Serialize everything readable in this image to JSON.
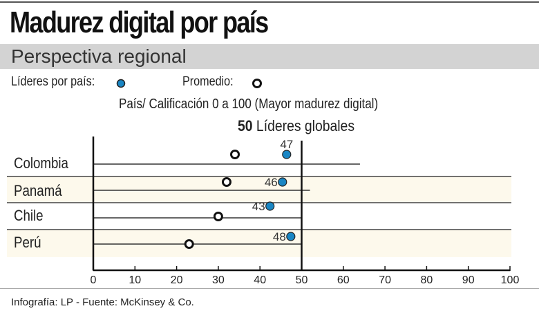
{
  "title": "Madurez digital por país",
  "subtitle": "Perspectiva regional",
  "legend": {
    "leaders": "Líderes por país:",
    "average": "Promedio:"
  },
  "footer": "Infografía: LP  - Fuente: McKinsey & Co.",
  "colors": {
    "leader": "#1a86c4",
    "band": "#fdf9ec",
    "header_band": "#d3d3d3"
  },
  "chart_data": {
    "type": "scatter",
    "xlabel": "País/ Calificación 0 a 100 (Mayor madurez digital)",
    "benchmark": {
      "value": 50,
      "label": "Líderes globales",
      "value_label": "50"
    },
    "xlim": [
      0,
      100
    ],
    "xticks": [
      0,
      10,
      20,
      30,
      40,
      50,
      60,
      70,
      80,
      90,
      100
    ],
    "categories": [
      "Colombia",
      "Panamá",
      "Chile",
      "Perú"
    ],
    "leaders": [
      47,
      46,
      43,
      48
    ],
    "leader_labels": [
      "47",
      "46",
      "43",
      "48"
    ],
    "averages": [
      34,
      32,
      30,
      23
    ],
    "range_line_end": [
      64,
      52,
      50,
      50
    ]
  }
}
